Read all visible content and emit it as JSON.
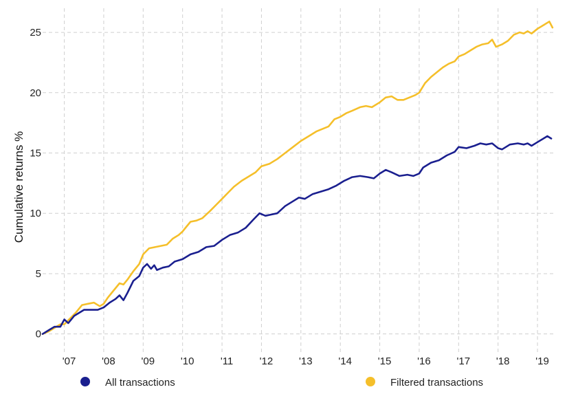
{
  "chart_data": {
    "type": "line",
    "title": "",
    "xlabel": "",
    "ylabel": "Cumulative returns %",
    "xlim": [
      2006.45,
      2019.4
    ],
    "ylim": [
      -1.5,
      27
    ],
    "grid": true,
    "legend_position": "bottom",
    "y_ticks": [
      0,
      5,
      10,
      15,
      20,
      25
    ],
    "x_ticks": [
      {
        "value": 2007,
        "label": "'07"
      },
      {
        "value": 2008,
        "label": "'08"
      },
      {
        "value": 2009,
        "label": "'09"
      },
      {
        "value": 2010,
        "label": "'10"
      },
      {
        "value": 2011,
        "label": "'11"
      },
      {
        "value": 2012,
        "label": "'12"
      },
      {
        "value": 2013,
        "label": "'13"
      },
      {
        "value": 2014,
        "label": "'14"
      },
      {
        "value": 2015,
        "label": "'15"
      },
      {
        "value": 2016,
        "label": "'16"
      },
      {
        "value": 2017,
        "label": "'17"
      },
      {
        "value": 2018,
        "label": "'18"
      },
      {
        "value": 2019,
        "label": "'19"
      }
    ],
    "series": [
      {
        "name": "All transactions",
        "color": "#1a1f8f",
        "points": [
          [
            2006.45,
            0
          ],
          [
            2006.6,
            0.3
          ],
          [
            2006.75,
            0.6
          ],
          [
            2006.9,
            0.6
          ],
          [
            2007.0,
            1.2
          ],
          [
            2007.1,
            0.9
          ],
          [
            2007.25,
            1.5
          ],
          [
            2007.4,
            1.8
          ],
          [
            2007.5,
            2.0
          ],
          [
            2007.7,
            2.0
          ],
          [
            2007.85,
            2.0
          ],
          [
            2008.0,
            2.2
          ],
          [
            2008.15,
            2.6
          ],
          [
            2008.3,
            2.9
          ],
          [
            2008.4,
            3.2
          ],
          [
            2008.5,
            2.8
          ],
          [
            2008.6,
            3.4
          ],
          [
            2008.75,
            4.4
          ],
          [
            2008.9,
            4.8
          ],
          [
            2009.0,
            5.5
          ],
          [
            2009.1,
            5.8
          ],
          [
            2009.2,
            5.4
          ],
          [
            2009.28,
            5.7
          ],
          [
            2009.35,
            5.3
          ],
          [
            2009.5,
            5.5
          ],
          [
            2009.65,
            5.6
          ],
          [
            2009.8,
            6.0
          ],
          [
            2010.0,
            6.2
          ],
          [
            2010.2,
            6.6
          ],
          [
            2010.4,
            6.8
          ],
          [
            2010.5,
            7.0
          ],
          [
            2010.6,
            7.2
          ],
          [
            2010.8,
            7.3
          ],
          [
            2011.0,
            7.8
          ],
          [
            2011.2,
            8.2
          ],
          [
            2011.4,
            8.4
          ],
          [
            2011.6,
            8.8
          ],
          [
            2011.8,
            9.5
          ],
          [
            2011.95,
            10.0
          ],
          [
            2012.1,
            9.8
          ],
          [
            2012.25,
            9.9
          ],
          [
            2012.4,
            10.0
          ],
          [
            2012.6,
            10.6
          ],
          [
            2012.8,
            11.0
          ],
          [
            2012.95,
            11.3
          ],
          [
            2013.1,
            11.2
          ],
          [
            2013.3,
            11.6
          ],
          [
            2013.5,
            11.8
          ],
          [
            2013.7,
            12.0
          ],
          [
            2013.9,
            12.3
          ],
          [
            2014.1,
            12.7
          ],
          [
            2014.3,
            13.0
          ],
          [
            2014.5,
            13.1
          ],
          [
            2014.7,
            13.0
          ],
          [
            2014.85,
            12.9
          ],
          [
            2015.0,
            13.3
          ],
          [
            2015.15,
            13.6
          ],
          [
            2015.3,
            13.4
          ],
          [
            2015.5,
            13.1
          ],
          [
            2015.7,
            13.2
          ],
          [
            2015.85,
            13.1
          ],
          [
            2016.0,
            13.3
          ],
          [
            2016.1,
            13.8
          ],
          [
            2016.3,
            14.2
          ],
          [
            2016.5,
            14.4
          ],
          [
            2016.7,
            14.8
          ],
          [
            2016.9,
            15.1
          ],
          [
            2017.0,
            15.5
          ],
          [
            2017.2,
            15.4
          ],
          [
            2017.4,
            15.6
          ],
          [
            2017.55,
            15.8
          ],
          [
            2017.7,
            15.7
          ],
          [
            2017.85,
            15.8
          ],
          [
            2018.0,
            15.4
          ],
          [
            2018.1,
            15.3
          ],
          [
            2018.3,
            15.7
          ],
          [
            2018.5,
            15.8
          ],
          [
            2018.65,
            15.7
          ],
          [
            2018.75,
            15.8
          ],
          [
            2018.85,
            15.6
          ],
          [
            2019.0,
            15.9
          ],
          [
            2019.15,
            16.2
          ],
          [
            2019.25,
            16.4
          ],
          [
            2019.35,
            16.2
          ]
        ]
      },
      {
        "name": "Filtered transactions",
        "color": "#f5bf2a",
        "points": [
          [
            2006.45,
            0
          ],
          [
            2006.6,
            0.2
          ],
          [
            2006.75,
            0.5
          ],
          [
            2006.9,
            0.8
          ],
          [
            2007.0,
            0.8
          ],
          [
            2007.15,
            1.3
          ],
          [
            2007.3,
            1.8
          ],
          [
            2007.45,
            2.4
          ],
          [
            2007.6,
            2.5
          ],
          [
            2007.75,
            2.6
          ],
          [
            2007.9,
            2.3
          ],
          [
            2008.0,
            2.5
          ],
          [
            2008.1,
            3.0
          ],
          [
            2008.25,
            3.6
          ],
          [
            2008.4,
            4.2
          ],
          [
            2008.5,
            4.1
          ],
          [
            2008.6,
            4.5
          ],
          [
            2008.75,
            5.2
          ],
          [
            2008.9,
            5.8
          ],
          [
            2009.0,
            6.6
          ],
          [
            2009.15,
            7.1
          ],
          [
            2009.3,
            7.2
          ],
          [
            2009.45,
            7.3
          ],
          [
            2009.6,
            7.4
          ],
          [
            2009.75,
            7.9
          ],
          [
            2009.9,
            8.2
          ],
          [
            2010.0,
            8.5
          ],
          [
            2010.1,
            8.9
          ],
          [
            2010.2,
            9.3
          ],
          [
            2010.35,
            9.4
          ],
          [
            2010.5,
            9.6
          ],
          [
            2010.7,
            10.2
          ],
          [
            2010.85,
            10.7
          ],
          [
            2011.0,
            11.2
          ],
          [
            2011.15,
            11.7
          ],
          [
            2011.3,
            12.2
          ],
          [
            2011.5,
            12.7
          ],
          [
            2011.7,
            13.1
          ],
          [
            2011.85,
            13.4
          ],
          [
            2012.0,
            13.9
          ],
          [
            2012.2,
            14.1
          ],
          [
            2012.4,
            14.5
          ],
          [
            2012.6,
            15.0
          ],
          [
            2012.8,
            15.5
          ],
          [
            2013.0,
            16.0
          ],
          [
            2013.2,
            16.4
          ],
          [
            2013.4,
            16.8
          ],
          [
            2013.55,
            17.0
          ],
          [
            2013.7,
            17.2
          ],
          [
            2013.85,
            17.8
          ],
          [
            2014.0,
            18.0
          ],
          [
            2014.15,
            18.3
          ],
          [
            2014.3,
            18.5
          ],
          [
            2014.5,
            18.8
          ],
          [
            2014.65,
            18.9
          ],
          [
            2014.8,
            18.8
          ],
          [
            2015.0,
            19.2
          ],
          [
            2015.15,
            19.6
          ],
          [
            2015.3,
            19.7
          ],
          [
            2015.45,
            19.4
          ],
          [
            2015.6,
            19.4
          ],
          [
            2015.75,
            19.6
          ],
          [
            2015.9,
            19.8
          ],
          [
            2016.0,
            20.0
          ],
          [
            2016.15,
            20.8
          ],
          [
            2016.3,
            21.3
          ],
          [
            2016.45,
            21.7
          ],
          [
            2016.6,
            22.1
          ],
          [
            2016.75,
            22.4
          ],
          [
            2016.9,
            22.6
          ],
          [
            2017.0,
            23.0
          ],
          [
            2017.15,
            23.2
          ],
          [
            2017.3,
            23.5
          ],
          [
            2017.45,
            23.8
          ],
          [
            2017.6,
            24.0
          ],
          [
            2017.75,
            24.1
          ],
          [
            2017.85,
            24.4
          ],
          [
            2017.95,
            23.8
          ],
          [
            2018.1,
            24.0
          ],
          [
            2018.25,
            24.3
          ],
          [
            2018.4,
            24.8
          ],
          [
            2018.55,
            25.0
          ],
          [
            2018.65,
            24.9
          ],
          [
            2018.75,
            25.1
          ],
          [
            2018.85,
            24.9
          ],
          [
            2019.0,
            25.3
          ],
          [
            2019.15,
            25.6
          ],
          [
            2019.3,
            25.9
          ],
          [
            2019.38,
            25.4
          ]
        ]
      }
    ]
  }
}
